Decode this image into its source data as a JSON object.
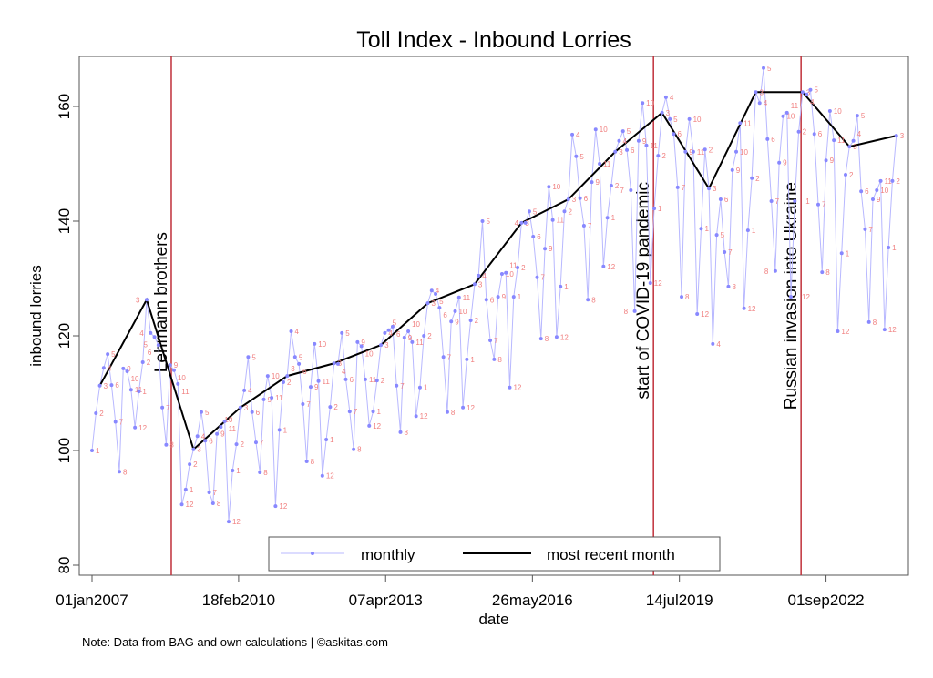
{
  "chart_data": {
    "type": "line",
    "title": "Toll Index - Inbound Lorries",
    "xlabel": "date",
    "ylabel": "inbound lorries",
    "ylim": [
      78,
      168
    ],
    "yticks": [
      80,
      100,
      120,
      140,
      160
    ],
    "xticks": [
      {
        "label": "01jan2007",
        "month_index": 0
      },
      {
        "label": "18feb2010",
        "month_index": 37.55
      },
      {
        "label": "07apr2013",
        "month_index": 75.2
      },
      {
        "label": "26may2016",
        "month_index": 112.8
      },
      {
        "label": "14jul2019",
        "month_index": 150.45
      },
      {
        "label": "01sep2022",
        "month_index": 188.0
      }
    ],
    "x_start": "2007-01",
    "grid": false,
    "legend_position": "bottom-inside",
    "series": [
      {
        "name": "monthly",
        "color": "#8888ff",
        "line_color": "#b8b8ff",
        "label_color": "#f08080",
        "values": [
          100,
          106.5,
          111.3,
          114.4,
          116.8,
          111.4,
          105,
          96.3,
          114.3,
          113.8,
          110.6,
          104,
          110.3,
          115.4,
          126.3,
          120.5,
          119.8,
          118.4,
          107.5,
          101,
          114.9,
          114,
          111.6,
          90.6,
          93.2,
          97.6,
          100.2,
          102.5,
          106.7,
          101.7,
          92.7,
          90.8,
          102.9,
          104.1,
          105.1,
          87.6,
          96.5,
          101.1,
          107.5,
          110.5,
          116.3,
          106.7,
          101.4,
          96.2,
          108.9,
          113,
          109.2,
          90.3,
          103.6,
          111.9,
          113,
          120.8,
          116.3,
          115.1,
          108.1,
          98.1,
          111.1,
          118.6,
          112.1,
          95.6,
          101.9,
          107.6,
          115.2,
          115.1,
          120.5,
          112.4,
          106.8,
          100.2,
          118.9,
          118.2,
          112.4,
          104.3,
          106.8,
          112.2,
          118.4,
          120.5,
          121,
          121.6,
          111.3,
          103.2,
          119.7,
          120.8,
          118.9,
          106,
          111,
          120,
          125.7,
          127.9,
          127.3,
          124.9,
          116.3,
          106.7,
          122.5,
          124.3,
          126.7,
          107.5,
          115.9,
          122.7,
          129,
          130.5,
          140,
          126.3,
          119.2,
          115.9,
          126.8,
          130.8,
          131,
          111,
          126.8,
          131.9,
          139.7,
          139.7,
          141.7,
          137.3,
          130.2,
          119.5,
          135.2,
          146,
          140.2,
          119.8,
          128.6,
          141.7,
          143.8,
          155.1,
          151.3,
          144,
          139.2,
          126.3,
          146.8,
          156,
          150,
          132.1,
          140.6,
          146.2,
          152.1,
          154,
          155.7,
          152.4,
          145.4,
          124.3,
          154,
          160.6,
          153.2,
          129.2,
          142.2,
          151.4,
          158.9,
          161.6,
          157.8,
          155.2,
          145.9,
          126.8,
          152.1,
          157.8,
          152.1,
          123.8,
          138.7,
          152.5,
          145.7,
          118.6,
          137.6,
          143.8,
          134.6,
          128.6,
          148.9,
          152.1,
          157.1,
          124.8,
          138.4,
          147.5,
          162.5,
          160.6,
          166.7,
          154.3,
          143.5,
          131.3,
          150.2,
          158.3,
          158.9,
          126.8,
          143.5,
          155.6,
          162.5,
          162.1,
          162.9,
          155.2,
          142.9,
          131.1,
          150.6,
          159.2,
          154.1,
          120.8,
          134.4,
          148.1,
          153,
          154,
          158.4,
          145.2,
          138.6,
          122.4,
          143.8,
          145.4,
          147,
          121.1,
          135.4,
          147,
          154.9
        ]
      },
      {
        "name": "most recent month",
        "color": "#000000",
        "month_of_year": 3
      }
    ],
    "events": [
      {
        "label": "Lehmann brothers",
        "month_index": 20.3,
        "color": "#c0303a"
      },
      {
        "label": "start of COVID-19 pandemic",
        "month_index": 143.8,
        "color": "#c0303a"
      },
      {
        "label": "Russian invasion into Ukraine",
        "month_index": 181.6,
        "color": "#c0303a"
      }
    ],
    "note": "Note: Data from BAG and own calculations | ©askitas.com"
  }
}
